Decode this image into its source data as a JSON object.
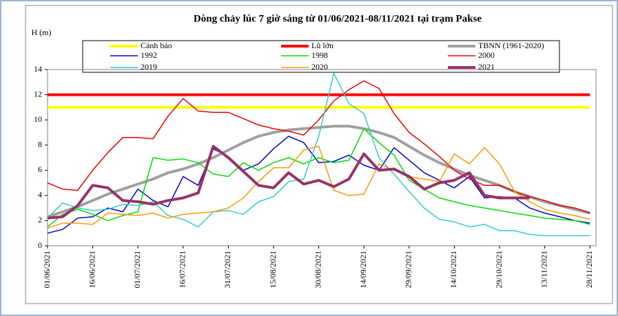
{
  "chart_data": {
    "type": "line",
    "title": "Dòng chảy lúc 7 giờ sáng từ 01/06/2021-08/11/2021 tại trạm Pakse",
    "y_label": "H (m)",
    "x": [
      "01/06/2021",
      "06/06/2021",
      "11/06/2021",
      "16/06/2021",
      "21/06/2021",
      "26/06/2021",
      "01/07/2021",
      "06/07/2021",
      "11/07/2021",
      "16/07/2021",
      "21/07/2021",
      "26/07/2021",
      "31/07/2021",
      "05/08/2021",
      "10/08/2021",
      "15/08/2021",
      "20/08/2021",
      "25/08/2021",
      "30/08/2021",
      "04/09/2021",
      "09/09/2021",
      "14/09/2021",
      "19/09/2021",
      "24/09/2021",
      "29/09/2021",
      "04/10/2021",
      "09/10/2021",
      "14/10/2021",
      "19/10/2021",
      "24/10/2021",
      "29/10/2021",
      "03/11/2021",
      "08/11/2021",
      "13/11/2021",
      "18/11/2021",
      "23/11/2021",
      "28/11/2021"
    ],
    "xlim": [
      "01/06/2021",
      "30/11/2021"
    ],
    "xticks": [
      "01/06/2021",
      "16/06/2021",
      "01/07/2021",
      "16/07/2021",
      "31/07/2021",
      "15/08/2021",
      "30/08/2021",
      "14/09/2021",
      "29/09/2021",
      "14/10/2021",
      "29/10/2021",
      "13/11/2021",
      "28/11/2021"
    ],
    "ylim": [
      0,
      14
    ],
    "yticks": [
      0,
      2,
      4,
      6,
      8,
      10,
      12,
      14
    ],
    "series": [
      {
        "name": "Cảnh báo",
        "color": "#ffff00",
        "width": 4,
        "values": [
          11,
          11,
          11,
          11,
          11,
          11,
          11,
          11,
          11,
          11,
          11,
          11,
          11,
          11,
          11,
          11,
          11,
          11,
          11,
          11,
          11,
          11,
          11,
          11,
          11,
          11,
          11,
          11,
          11,
          11,
          11,
          11,
          11,
          11,
          11,
          11,
          11
        ]
      },
      {
        "name": "Lũ lớn",
        "color": "#ff0000",
        "width": 4,
        "values": [
          12,
          12,
          12,
          12,
          12,
          12,
          12,
          12,
          12,
          12,
          12,
          12,
          12,
          12,
          12,
          12,
          12,
          12,
          12,
          12,
          12,
          12,
          12,
          12,
          12,
          12,
          12,
          12,
          12,
          12,
          12,
          12,
          12,
          12,
          12,
          12,
          12
        ]
      },
      {
        "name": "TBNN (1961-2020)",
        "color": "#a0a0a0",
        "width": 4,
        "values": [
          2.3,
          2.7,
          3.1,
          3.6,
          4.1,
          4.5,
          4.9,
          5.3,
          5.8,
          6.1,
          6.5,
          7.0,
          7.6,
          8.2,
          8.7,
          9.0,
          9.2,
          9.3,
          9.4,
          9.5,
          9.5,
          9.3,
          9.0,
          8.6,
          7.9,
          7.2,
          6.6,
          6.1,
          5.6,
          5.2,
          4.8,
          4.3,
          3.9,
          3.5,
          3.2,
          2.9,
          2.6
        ]
      },
      {
        "name": "1992",
        "color": "#0000cc",
        "width": 1.5,
        "values": [
          1.0,
          1.3,
          2.2,
          2.3,
          3.0,
          2.7,
          4.5,
          3.6,
          3.1,
          5.5,
          4.8,
          7.7,
          7.1,
          6.0,
          6.5,
          7.7,
          8.7,
          8.2,
          6.6,
          6.7,
          7.2,
          6.4,
          6.0,
          7.8,
          6.8,
          5.8,
          5.2,
          4.6,
          5.5,
          3.8,
          3.9,
          3.8,
          3.0,
          2.6,
          2.3,
          2.0,
          1.8
        ]
      },
      {
        "name": "1998",
        "color": "#00dd00",
        "width": 1.5,
        "values": [
          1.5,
          2.5,
          2.9,
          2.5,
          2.0,
          2.4,
          2.7,
          7.0,
          6.8,
          6.9,
          6.6,
          5.7,
          5.5,
          6.6,
          6.0,
          6.6,
          7.0,
          6.5,
          7.0,
          6.6,
          6.8,
          9.3,
          8.2,
          7.2,
          5.2,
          4.5,
          3.8,
          3.5,
          3.2,
          3.0,
          2.8,
          2.6,
          2.4,
          2.2,
          2.1,
          2.0,
          1.7
        ]
      },
      {
        "name": "2000",
        "color": "#ee0000",
        "width": 1.5,
        "values": [
          5.0,
          4.5,
          4.4,
          6.0,
          7.4,
          8.6,
          8.6,
          8.5,
          10.3,
          11.7,
          10.7,
          10.6,
          10.6,
          10.1,
          9.6,
          9.3,
          9.1,
          8.8,
          10.0,
          11.5,
          12.4,
          13.1,
          12.5,
          10.5,
          9.0,
          8.1,
          7.1,
          6.0,
          5.3,
          4.8,
          4.8,
          4.3,
          3.9,
          3.6,
          3.2,
          3.0,
          2.6
        ]
      },
      {
        "name": "2019",
        "color": "#33cccc",
        "width": 1.5,
        "values": [
          2.2,
          3.4,
          3.0,
          2.8,
          2.9,
          3.3,
          3.2,
          3.5,
          2.4,
          2.1,
          1.5,
          2.7,
          2.8,
          2.5,
          3.5,
          3.9,
          5.1,
          5.3,
          8.7,
          13.7,
          11.3,
          10.5,
          7.0,
          5.7,
          4.3,
          3.0,
          2.1,
          1.9,
          1.5,
          1.7,
          1.2,
          1.2,
          0.9,
          0.8,
          0.8,
          0.8,
          0.8
        ]
      },
      {
        "name": "2020",
        "color": "#ff9900",
        "width": 1.5,
        "values": [
          1.4,
          1.8,
          1.8,
          1.7,
          2.6,
          2.5,
          2.4,
          2.6,
          2.2,
          2.5,
          2.6,
          2.7,
          3.0,
          3.8,
          5.1,
          6.2,
          6.2,
          7.6,
          7.9,
          4.4,
          4.0,
          4.1,
          6.5,
          6.0,
          5.5,
          5.3,
          5.1,
          7.3,
          6.5,
          7.8,
          6.5,
          4.3,
          3.5,
          2.9,
          2.6,
          2.4,
          2.1
        ]
      },
      {
        "name": "2021",
        "color": "#993366",
        "width": 4,
        "values": [
          2.2,
          2.3,
          3.2,
          4.8,
          4.6,
          3.6,
          3.5,
          3.3,
          3.6,
          3.8,
          4.2,
          7.9,
          7.0,
          5.9,
          4.8,
          4.6,
          5.8,
          4.9,
          5.2,
          4.7,
          5.3,
          7.3,
          6.0,
          6.1,
          5.5,
          4.5,
          5.0,
          5.2,
          5.8,
          4.0,
          3.8,
          3.8,
          3.8,
          null,
          null,
          null,
          null
        ]
      }
    ]
  }
}
